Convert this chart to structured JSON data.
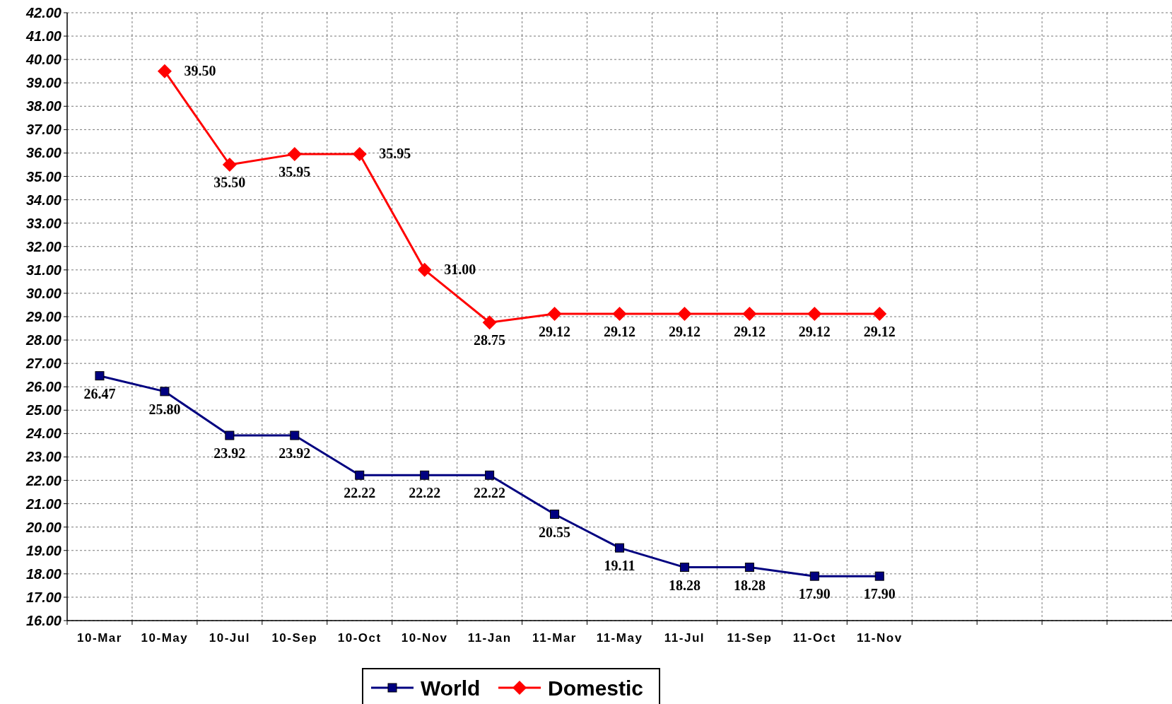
{
  "chart_data": {
    "type": "line",
    "categories": [
      "10-Mar",
      "10-May",
      "10-Jul",
      "10-Sep",
      "10-Oct",
      "10-Nov",
      "11-Jan",
      "11-Mar",
      "11-May",
      "11-Jul",
      "11-Sep",
      "11-Oct",
      "11-Nov",
      null,
      null,
      null,
      null
    ],
    "series": [
      {
        "name": "World",
        "color": "#000080",
        "marker": "square",
        "values": [
          26.47,
          25.8,
          23.92,
          23.92,
          22.22,
          22.22,
          22.22,
          20.55,
          19.11,
          18.28,
          18.28,
          17.9,
          17.9,
          null,
          null,
          null,
          null
        ],
        "value_labels": [
          "26.47",
          "25.80",
          "23.92",
          "23.92",
          "22.22",
          "22.22",
          "22.22",
          "20.55",
          "19.11",
          "18.28",
          "18.28",
          "17.90",
          "17.90",
          null,
          null,
          null,
          null
        ]
      },
      {
        "name": "Domestic",
        "color": "#ff0000",
        "marker": "diamond",
        "values": [
          null,
          39.5,
          35.5,
          35.95,
          35.95,
          31.0,
          28.75,
          29.12,
          29.12,
          29.12,
          29.12,
          29.12,
          29.12,
          null,
          null,
          null,
          null
        ],
        "value_labels": [
          null,
          "39.50",
          "35.50",
          "35.95",
          "35.95",
          "31.00",
          "28.75",
          "29.12",
          "29.12",
          "29.12",
          "29.12",
          "29.12",
          "29.12",
          null,
          null,
          null,
          null
        ]
      }
    ],
    "ylim": [
      16,
      42
    ],
    "yticks": [
      {
        "value": 16,
        "label": "16.00"
      },
      {
        "value": 17,
        "label": "17.00"
      },
      {
        "value": 18,
        "label": "18.00"
      },
      {
        "value": 19,
        "label": "19.00"
      },
      {
        "value": 20,
        "label": "20.00"
      },
      {
        "value": 21,
        "label": "21.00"
      },
      {
        "value": 22,
        "label": "22.00"
      },
      {
        "value": 23,
        "label": "23.00"
      },
      {
        "value": 24,
        "label": "24.00"
      },
      {
        "value": 25,
        "label": "25.00"
      },
      {
        "value": 26,
        "label": "26.00"
      },
      {
        "value": 27,
        "label": "27.00"
      },
      {
        "value": 28,
        "label": "28.00"
      },
      {
        "value": 29,
        "label": "29.00"
      },
      {
        "value": 30,
        "label": "30.00"
      },
      {
        "value": 31,
        "label": "31.00"
      },
      {
        "value": 32,
        "label": "32.00"
      },
      {
        "value": 33,
        "label": "33.00"
      },
      {
        "value": 34,
        "label": "34.00"
      },
      {
        "value": 35,
        "label": "35.00"
      },
      {
        "value": 36,
        "label": "36.00"
      },
      {
        "value": 37,
        "label": "37.00"
      },
      {
        "value": 38,
        "label": "38.00"
      },
      {
        "value": 39,
        "label": "39.00"
      },
      {
        "value": 40,
        "label": "40.00"
      },
      {
        "value": 41,
        "label": "41.00"
      },
      {
        "value": 42,
        "label": "42.00"
      }
    ],
    "grid": true,
    "legend": "bottom",
    "line_style": "solid"
  }
}
